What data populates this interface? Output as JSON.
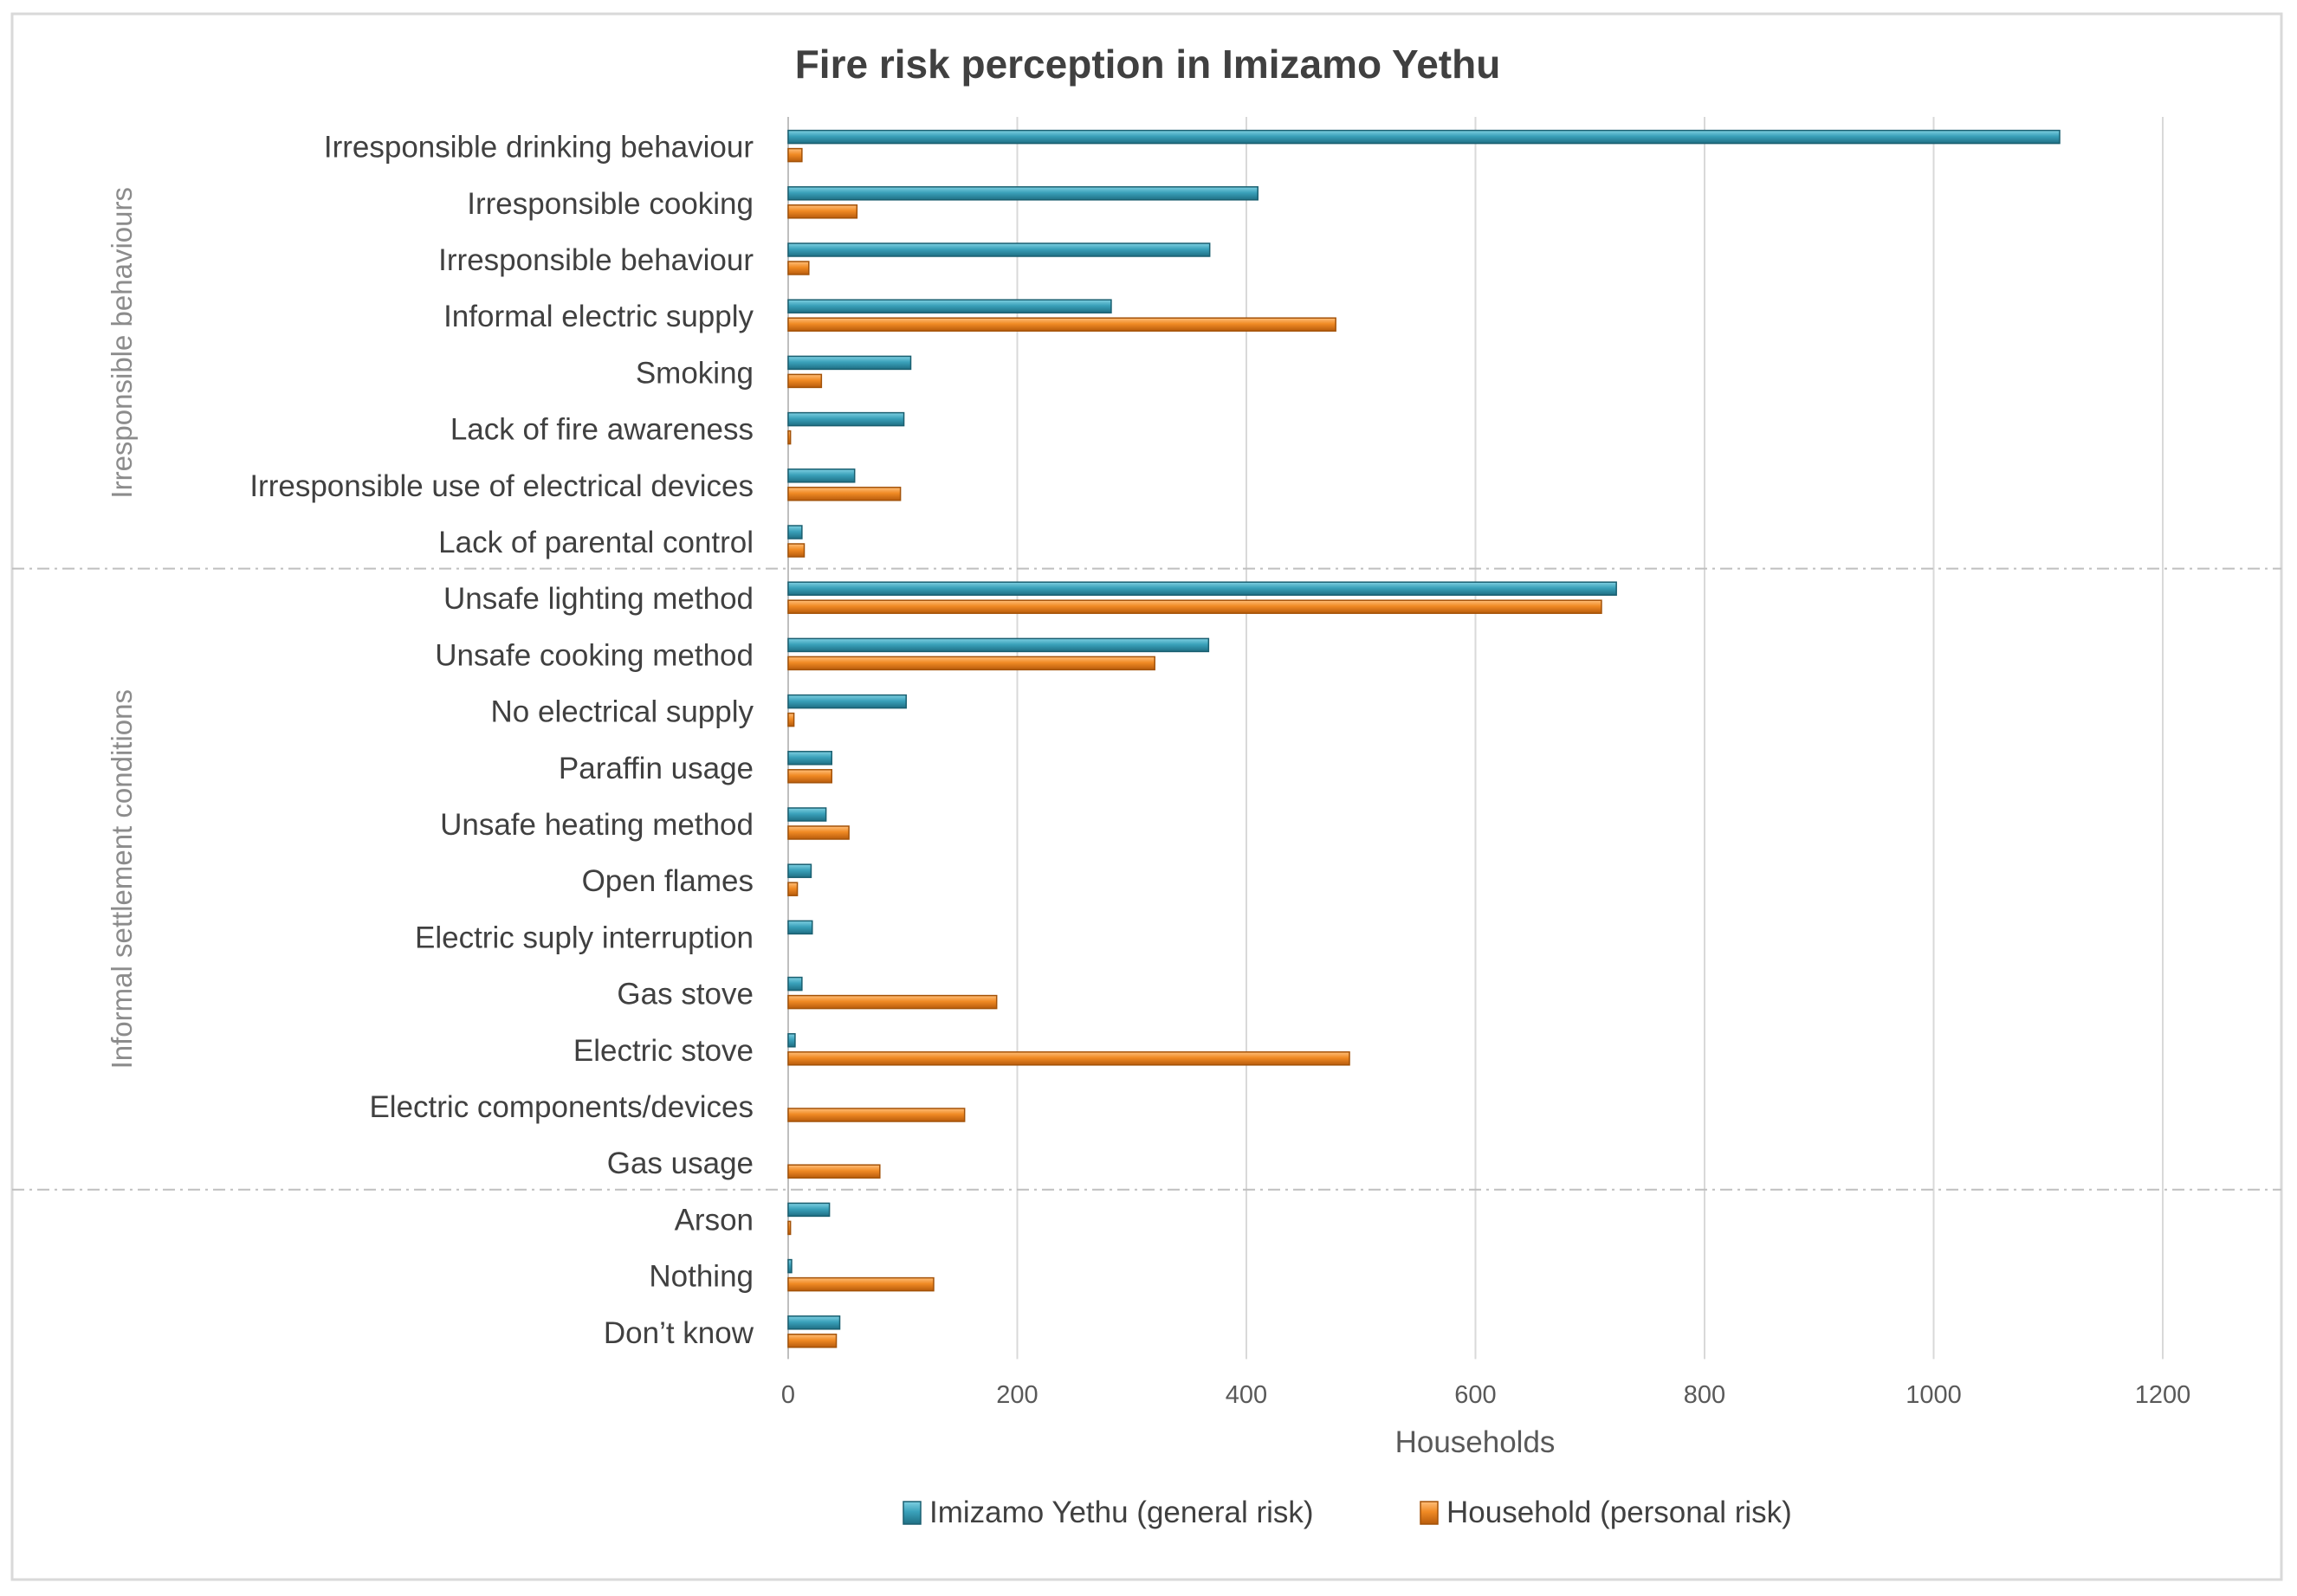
{
  "chart_data": {
    "type": "bar",
    "orientation": "horizontal",
    "title": "Fire risk perception in Imizamo Yethu",
    "xlabel": "Households",
    "ylabel": "",
    "xlim": [
      0,
      1200
    ],
    "xticks": [
      0,
      200,
      400,
      600,
      800,
      1000,
      1200
    ],
    "grid": true,
    "legend_position": "bottom",
    "colors": {
      "general": "#3da0b8",
      "personal": "#f08a24",
      "grid": "#d9d9d9",
      "border": "#d9d9d9",
      "separator": "#bfbfbf"
    },
    "categories": [
      "Irresponsible drinking behaviour",
      "Irresponsible cooking",
      "Irresponsible behaviour",
      "Informal electric supply",
      "Smoking",
      "Lack of fire awareness",
      "Irresponsible use of electrical devices",
      "Lack of parental control",
      "Unsafe lighting method",
      "Unsafe cooking method",
      "No electrical supply",
      "Paraffin usage",
      "Unsafe heating method",
      "Open flames",
      "Electric suply interruption",
      "Gas stove",
      "Electric stove",
      "Electric components/devices",
      "Gas usage",
      "Arson",
      "Nothing",
      "Don’t know"
    ],
    "series": [
      {
        "name": "Imizamo Yethu (general risk)",
        "values": [
          1110,
          410,
          368,
          282,
          107,
          101,
          58,
          12,
          723,
          367,
          103,
          38,
          33,
          20,
          21,
          12,
          6,
          0,
          0,
          36,
          3,
          45
        ]
      },
      {
        "name": "Household  (personal risk)",
        "values": [
          12,
          60,
          18,
          478,
          29,
          2,
          98,
          14,
          710,
          320,
          5,
          38,
          53,
          8,
          0,
          182,
          490,
          154,
          80,
          2,
          127,
          42
        ]
      }
    ],
    "groups": [
      {
        "label": "Irresponsible behaviours",
        "start": 0,
        "end": 7
      },
      {
        "label": "Informal settlement conditions",
        "start": 8,
        "end": 18
      }
    ]
  }
}
